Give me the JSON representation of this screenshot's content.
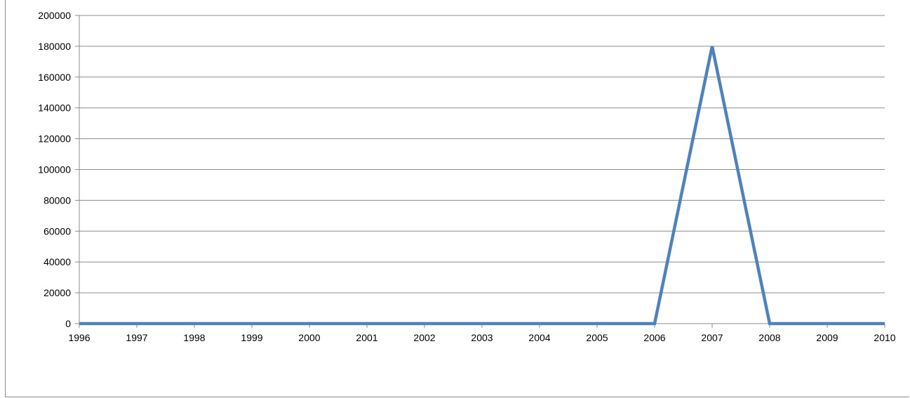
{
  "chart_data": {
    "type": "line",
    "title": "",
    "xlabel": "",
    "ylabel": "",
    "categories": [
      "1996",
      "1997",
      "1998",
      "1999",
      "2000",
      "2001",
      "2002",
      "2003",
      "2004",
      "2005",
      "2006",
      "2007",
      "2008",
      "2009",
      "2010"
    ],
    "series": [
      {
        "values": [
          0,
          0,
          0,
          0,
          0,
          0,
          0,
          0,
          0,
          0,
          0,
          180000,
          0,
          0,
          0
        ],
        "color": "#4f81bd"
      }
    ],
    "ylim": [
      0,
      200000
    ],
    "yticks": [
      "0",
      "20000",
      "40000",
      "60000",
      "80000",
      "100000",
      "120000",
      "140000",
      "160000",
      "180000",
      "200000"
    ],
    "grid": true,
    "legend": "none"
  }
}
